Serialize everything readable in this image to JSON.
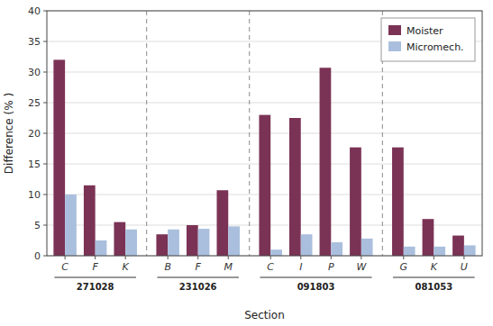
{
  "chart_data": {
    "type": "bar",
    "categories": [
      "C",
      "F",
      "K",
      "B",
      "F",
      "M",
      "C",
      "I",
      "P",
      "W",
      "G",
      "K",
      "U"
    ],
    "groups": [
      {
        "label": "271028",
        "count": 3
      },
      {
        "label": "231026",
        "count": 3
      },
      {
        "label": "091803",
        "count": 4
      },
      {
        "label": "081053",
        "count": 3
      }
    ],
    "series": [
      {
        "name": "Moister",
        "color": "#7B3355",
        "values": [
          32,
          11.5,
          5.5,
          3.5,
          5.0,
          10.7,
          23,
          22.5,
          30.7,
          17.7,
          17.7,
          6.0,
          3.3
        ]
      },
      {
        "name": "Micromech.",
        "color": "#AABFDD",
        "values": [
          10,
          2.5,
          4.3,
          4.3,
          4.4,
          4.8,
          1.0,
          3.5,
          2.2,
          2.8,
          1.5,
          1.5,
          1.7
        ]
      }
    ],
    "xlabel": "Section",
    "ylabel": "Difference (% )",
    "ylim": [
      0,
      40
    ],
    "yticks": [
      0,
      5,
      10,
      15,
      20,
      25,
      30,
      35,
      40
    ],
    "grid": true,
    "legend": "upper right"
  }
}
